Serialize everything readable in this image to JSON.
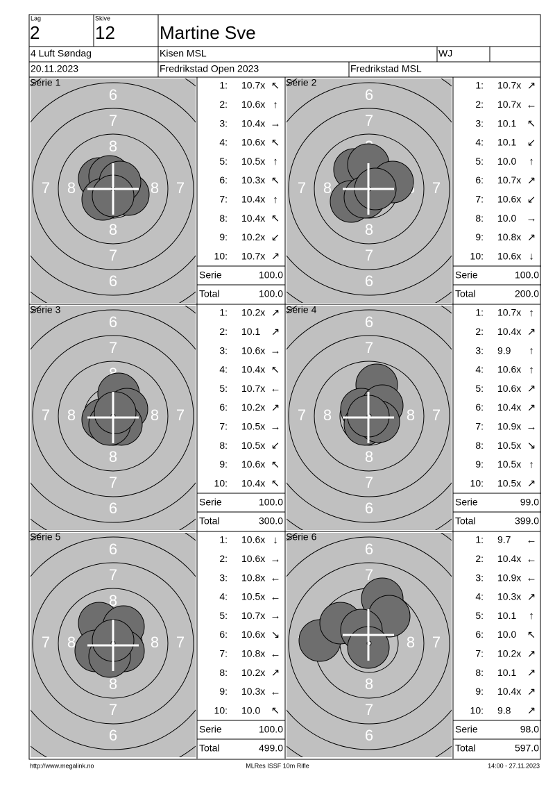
{
  "header": {
    "lag_label": "Lag",
    "lag": "2",
    "skive_label": "Skive",
    "skive": "12",
    "name": "Martine Sve",
    "class": "4 Luft Søndag",
    "club": "Kisen MSL",
    "code": "WJ",
    "date": "20.11.2023",
    "event": "Fredrikstad Open 2023",
    "organizer": "Fredrikstad MSL"
  },
  "target_labels": [
    "6",
    "7",
    "8"
  ],
  "shot_labels": [
    "1:",
    "2:",
    "3:",
    "4:",
    "5:",
    "6:",
    "7:",
    "8:",
    "9:",
    "10:"
  ],
  "serie_label": "Serie",
  "total_label": "Total",
  "series": [
    {
      "label": "Serie 1",
      "shots": [
        {
          "score": "10.7x",
          "dir": "↖"
        },
        {
          "score": "10.6x",
          "dir": "↑"
        },
        {
          "score": "10.4x",
          "dir": "→"
        },
        {
          "score": "10.6x",
          "dir": "↖"
        },
        {
          "score": "10.5x",
          "dir": "↑"
        },
        {
          "score": "10.3x",
          "dir": "↖"
        },
        {
          "score": "10.4x",
          "dir": "↑"
        },
        {
          "score": "10.4x",
          "dir": "↖"
        },
        {
          "score": "10.2x",
          "dir": "↙"
        },
        {
          "score": "10.7x",
          "dir": "↗"
        }
      ],
      "serie": "100.0",
      "total": "100.0"
    },
    {
      "label": "Serie 2",
      "shots": [
        {
          "score": "10.7x",
          "dir": "↗"
        },
        {
          "score": "10.7x",
          "dir": "←"
        },
        {
          "score": "10.1",
          "dir": "↖"
        },
        {
          "score": "10.1",
          "dir": "↙"
        },
        {
          "score": "10.0",
          "dir": "↑"
        },
        {
          "score": "10.7x",
          "dir": "↗"
        },
        {
          "score": "10.6x",
          "dir": "↙"
        },
        {
          "score": "10.0",
          "dir": "→"
        },
        {
          "score": "10.8x",
          "dir": "↗"
        },
        {
          "score": "10.6x",
          "dir": "↓"
        }
      ],
      "serie": "100.0",
      "total": "200.0"
    },
    {
      "label": "Serie 3",
      "shots": [
        {
          "score": "10.2x",
          "dir": "↗"
        },
        {
          "score": "10.1",
          "dir": "↗"
        },
        {
          "score": "10.6x",
          "dir": "→"
        },
        {
          "score": "10.4x",
          "dir": "↖"
        },
        {
          "score": "10.7x",
          "dir": "←"
        },
        {
          "score": "10.2x",
          "dir": "↗"
        },
        {
          "score": "10.5x",
          "dir": "→"
        },
        {
          "score": "10.5x",
          "dir": "↙"
        },
        {
          "score": "10.6x",
          "dir": "↖"
        },
        {
          "score": "10.4x",
          "dir": "↖"
        }
      ],
      "serie": "100.0",
      "total": "300.0"
    },
    {
      "label": "Serie 4",
      "shots": [
        {
          "score": "10.7x",
          "dir": "↑"
        },
        {
          "score": "10.4x",
          "dir": "↗"
        },
        {
          "score": "9.9",
          "dir": "↑"
        },
        {
          "score": "10.6x",
          "dir": "↑"
        },
        {
          "score": "10.6x",
          "dir": "↗"
        },
        {
          "score": "10.4x",
          "dir": "↗"
        },
        {
          "score": "10.9x",
          "dir": "→"
        },
        {
          "score": "10.5x",
          "dir": "↘"
        },
        {
          "score": "10.5x",
          "dir": "↑"
        },
        {
          "score": "10.5x",
          "dir": "↗"
        }
      ],
      "serie": "99.0",
      "total": "399.0"
    },
    {
      "label": "Serie 5",
      "shots": [
        {
          "score": "10.6x",
          "dir": "↓"
        },
        {
          "score": "10.6x",
          "dir": "→"
        },
        {
          "score": "10.8x",
          "dir": "←"
        },
        {
          "score": "10.5x",
          "dir": "←"
        },
        {
          "score": "10.7x",
          "dir": "→"
        },
        {
          "score": "10.6x",
          "dir": "↘"
        },
        {
          "score": "10.8x",
          "dir": "←"
        },
        {
          "score": "10.2x",
          "dir": "↗"
        },
        {
          "score": "10.3x",
          "dir": "←"
        },
        {
          "score": "10.0",
          "dir": "↖"
        }
      ],
      "serie": "100.0",
      "total": "499.0"
    },
    {
      "label": "Serie 6",
      "shots": [
        {
          "score": "9.7",
          "dir": "←"
        },
        {
          "score": "10.4x",
          "dir": "←"
        },
        {
          "score": "10.9x",
          "dir": "←"
        },
        {
          "score": "10.3x",
          "dir": "↗"
        },
        {
          "score": "10.1",
          "dir": "↑"
        },
        {
          "score": "10.0",
          "dir": "↖"
        },
        {
          "score": "10.2x",
          "dir": "↗"
        },
        {
          "score": "10.1",
          "dir": "↗"
        },
        {
          "score": "10.4x",
          "dir": "↗"
        },
        {
          "score": "9.8",
          "dir": "↗"
        }
      ],
      "serie": "98.0",
      "total": "597.0"
    }
  ],
  "footer": {
    "url": "http://www.megalink.no",
    "program": "MLRes ISSF 10m Rifle",
    "timestamp": "14:00 - 27.11.2023"
  }
}
